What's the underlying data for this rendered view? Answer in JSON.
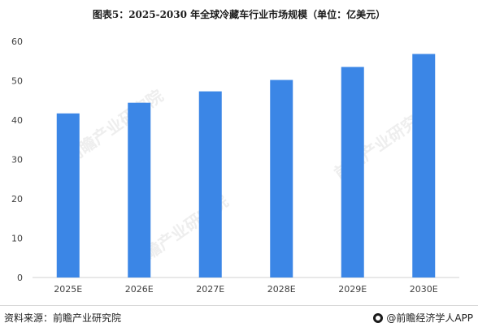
{
  "title": "图表5：2025-2030 年全球冷藏车行业市场规模（单位：亿美元）",
  "footer": {
    "source": "资料来源：前瞻产业研究院",
    "brand": "@前瞻经济学人APP"
  },
  "watermark": "前瞻产业研究院",
  "chart_data": {
    "type": "bar",
    "categories": [
      "2025E",
      "2026E",
      "2027E",
      "2028E",
      "2029E",
      "2030E"
    ],
    "values": [
      41.7,
      44.4,
      47.3,
      50.2,
      53.5,
      56.8
    ],
    "ylim": [
      0,
      60
    ],
    "yticks": [
      0,
      10,
      20,
      30,
      40,
      50,
      60
    ],
    "grid": false,
    "bar_color": "#3b86e6",
    "xlabel": "",
    "ylabel": ""
  }
}
